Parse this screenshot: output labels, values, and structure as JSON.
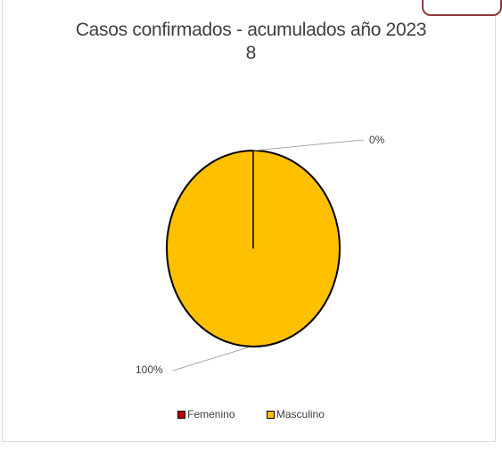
{
  "chart_data": {
    "type": "pie",
    "title": "Casos confirmados - acumulados año 2023",
    "subtitle": "8",
    "categories": [
      "Femenino",
      "Masculino"
    ],
    "values": [
      0,
      8
    ],
    "percent_labels": [
      "0%",
      "100%"
    ],
    "colors": [
      "#c00000",
      "#ffc000"
    ],
    "legend": {
      "placement": "bottom",
      "entries": [
        "Femenino",
        "Masculino"
      ]
    }
  }
}
